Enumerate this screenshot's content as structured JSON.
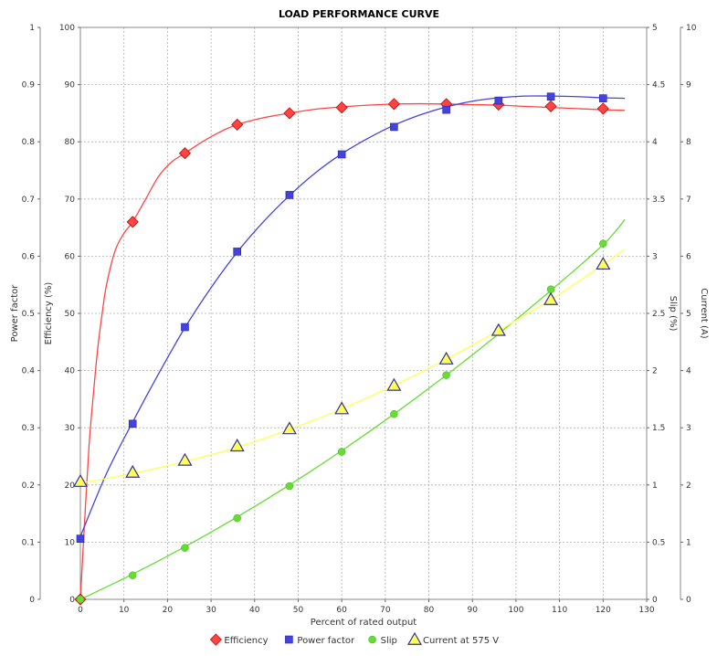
{
  "chart_data": {
    "type": "line",
    "title": "LOAD PERFORMANCE CURVE",
    "xlabel": "Percent of rated output",
    "xlim": [
      0,
      130
    ],
    "x_ticks": [
      0,
      10,
      20,
      30,
      40,
      50,
      60,
      70,
      80,
      90,
      100,
      110,
      120,
      130
    ],
    "grid": true,
    "legend_position": "bottom",
    "axes": {
      "power_factor": {
        "label": "Power factor",
        "position": "left-outer",
        "range": [
          0,
          1
        ],
        "ticks": [
          "0",
          "0.1",
          "0.2",
          "0.3",
          "0.4",
          "0.5",
          "0.6",
          "0.7",
          "0.8",
          "0.9",
          "1"
        ]
      },
      "efficiency": {
        "label": "Efficiency (%)",
        "position": "left-inner",
        "range": [
          0,
          100
        ],
        "ticks": [
          "0",
          "10",
          "20",
          "30",
          "40",
          "50",
          "60",
          "70",
          "80",
          "90",
          "100"
        ]
      },
      "slip": {
        "label": "Slip (%)",
        "position": "right-inner",
        "range": [
          0,
          5
        ],
        "ticks": [
          "0",
          "0.5",
          "1",
          "1.5",
          "2",
          "2.5",
          "3",
          "3.5",
          "4",
          "4.5",
          "5"
        ]
      },
      "current": {
        "label": "Current (A)",
        "position": "right-outer",
        "range": [
          0,
          10
        ],
        "ticks": [
          "0",
          "1",
          "2",
          "3",
          "4",
          "5",
          "6",
          "7",
          "8",
          "9",
          "10"
        ]
      }
    },
    "series": [
      {
        "name": "Efficiency",
        "axis": "efficiency",
        "color": "#ff4444",
        "marker": "diamond",
        "points": [
          [
            0,
            0
          ],
          [
            12,
            66
          ],
          [
            24,
            78
          ],
          [
            36,
            83
          ],
          [
            48,
            85
          ],
          [
            60,
            86
          ],
          [
            72,
            86.6
          ],
          [
            84,
            86.6
          ],
          [
            96,
            86.5
          ],
          [
            108,
            86.2
          ],
          [
            120,
            85.8
          ]
        ],
        "curve": [
          [
            0,
            0
          ],
          [
            1,
            14
          ],
          [
            2,
            27
          ],
          [
            3,
            36
          ],
          [
            4,
            44
          ],
          [
            5,
            50
          ],
          [
            6,
            55
          ],
          [
            8,
            61
          ],
          [
            10,
            64
          ],
          [
            12,
            66
          ],
          [
            15,
            70
          ],
          [
            18,
            74
          ],
          [
            21,
            76.5
          ],
          [
            24,
            78
          ],
          [
            28,
            80
          ],
          [
            32,
            81.7
          ],
          [
            36,
            83
          ],
          [
            42,
            84.2
          ],
          [
            48,
            85
          ],
          [
            54,
            85.7
          ],
          [
            60,
            86.1
          ],
          [
            66,
            86.4
          ],
          [
            72,
            86.6
          ],
          [
            78,
            86.65
          ],
          [
            84,
            86.6
          ],
          [
            90,
            86.5
          ],
          [
            96,
            86.4
          ],
          [
            102,
            86.2
          ],
          [
            108,
            86
          ],
          [
            114,
            85.8
          ],
          [
            120,
            85.6
          ],
          [
            125,
            85.5
          ]
        ]
      },
      {
        "name": "Power factor",
        "axis": "power_factor",
        "color": "#4444dd",
        "marker": "square",
        "points": [
          [
            0,
            0.106
          ],
          [
            12,
            0.307
          ],
          [
            24,
            0.476
          ],
          [
            36,
            0.608
          ],
          [
            48,
            0.707
          ],
          [
            60,
            0.778
          ],
          [
            72,
            0.826
          ],
          [
            84,
            0.856
          ],
          [
            96,
            0.872
          ],
          [
            108,
            0.879
          ],
          [
            120,
            0.876
          ]
        ],
        "curve": [
          [
            0,
            0.11
          ],
          [
            6,
            0.22
          ],
          [
            12,
            0.31
          ],
          [
            18,
            0.395
          ],
          [
            24,
            0.475
          ],
          [
            30,
            0.545
          ],
          [
            36,
            0.607
          ],
          [
            42,
            0.66
          ],
          [
            48,
            0.706
          ],
          [
            54,
            0.746
          ],
          [
            60,
            0.779
          ],
          [
            66,
            0.806
          ],
          [
            72,
            0.829
          ],
          [
            78,
            0.847
          ],
          [
            84,
            0.861
          ],
          [
            90,
            0.871
          ],
          [
            96,
            0.877
          ],
          [
            102,
            0.88
          ],
          [
            108,
            0.88
          ],
          [
            114,
            0.879
          ],
          [
            120,
            0.877
          ],
          [
            125,
            0.876
          ]
        ]
      },
      {
        "name": "Slip",
        "axis": "slip",
        "color": "#66dd33",
        "marker": "circle",
        "points": [
          [
            0,
            0.0
          ],
          [
            12,
            0.21
          ],
          [
            24,
            0.45
          ],
          [
            36,
            0.71
          ],
          [
            48,
            0.99
          ],
          [
            60,
            1.29
          ],
          [
            72,
            1.62
          ],
          [
            84,
            1.96
          ],
          [
            96,
            2.35
          ],
          [
            108,
            2.71
          ],
          [
            120,
            3.11
          ]
        ],
        "curve": [
          [
            0,
            0.0
          ],
          [
            12,
            0.22
          ],
          [
            24,
            0.46
          ],
          [
            36,
            0.72
          ],
          [
            48,
            1.0
          ],
          [
            60,
            1.3
          ],
          [
            72,
            1.62
          ],
          [
            84,
            1.96
          ],
          [
            96,
            2.32
          ],
          [
            108,
            2.7
          ],
          [
            120,
            3.1
          ],
          [
            125,
            3.32
          ]
        ]
      },
      {
        "name": "Current at 575 V",
        "axis": "current",
        "color": "#ffff55",
        "marker": "triangle",
        "points": [
          [
            0,
            2.06
          ],
          [
            12,
            2.22
          ],
          [
            24,
            2.43
          ],
          [
            36,
            2.68
          ],
          [
            48,
            2.98
          ],
          [
            60,
            3.33
          ],
          [
            72,
            3.74
          ],
          [
            84,
            4.2
          ],
          [
            96,
            4.7
          ],
          [
            108,
            5.24
          ],
          [
            120,
            5.86
          ]
        ],
        "curve": [
          [
            0,
            2.03
          ],
          [
            12,
            2.2
          ],
          [
            24,
            2.41
          ],
          [
            36,
            2.66
          ],
          [
            48,
            2.97
          ],
          [
            60,
            3.33
          ],
          [
            72,
            3.74
          ],
          [
            84,
            4.2
          ],
          [
            96,
            4.7
          ],
          [
            108,
            5.24
          ],
          [
            120,
            5.85
          ],
          [
            125,
            6.12
          ]
        ]
      }
    ]
  }
}
